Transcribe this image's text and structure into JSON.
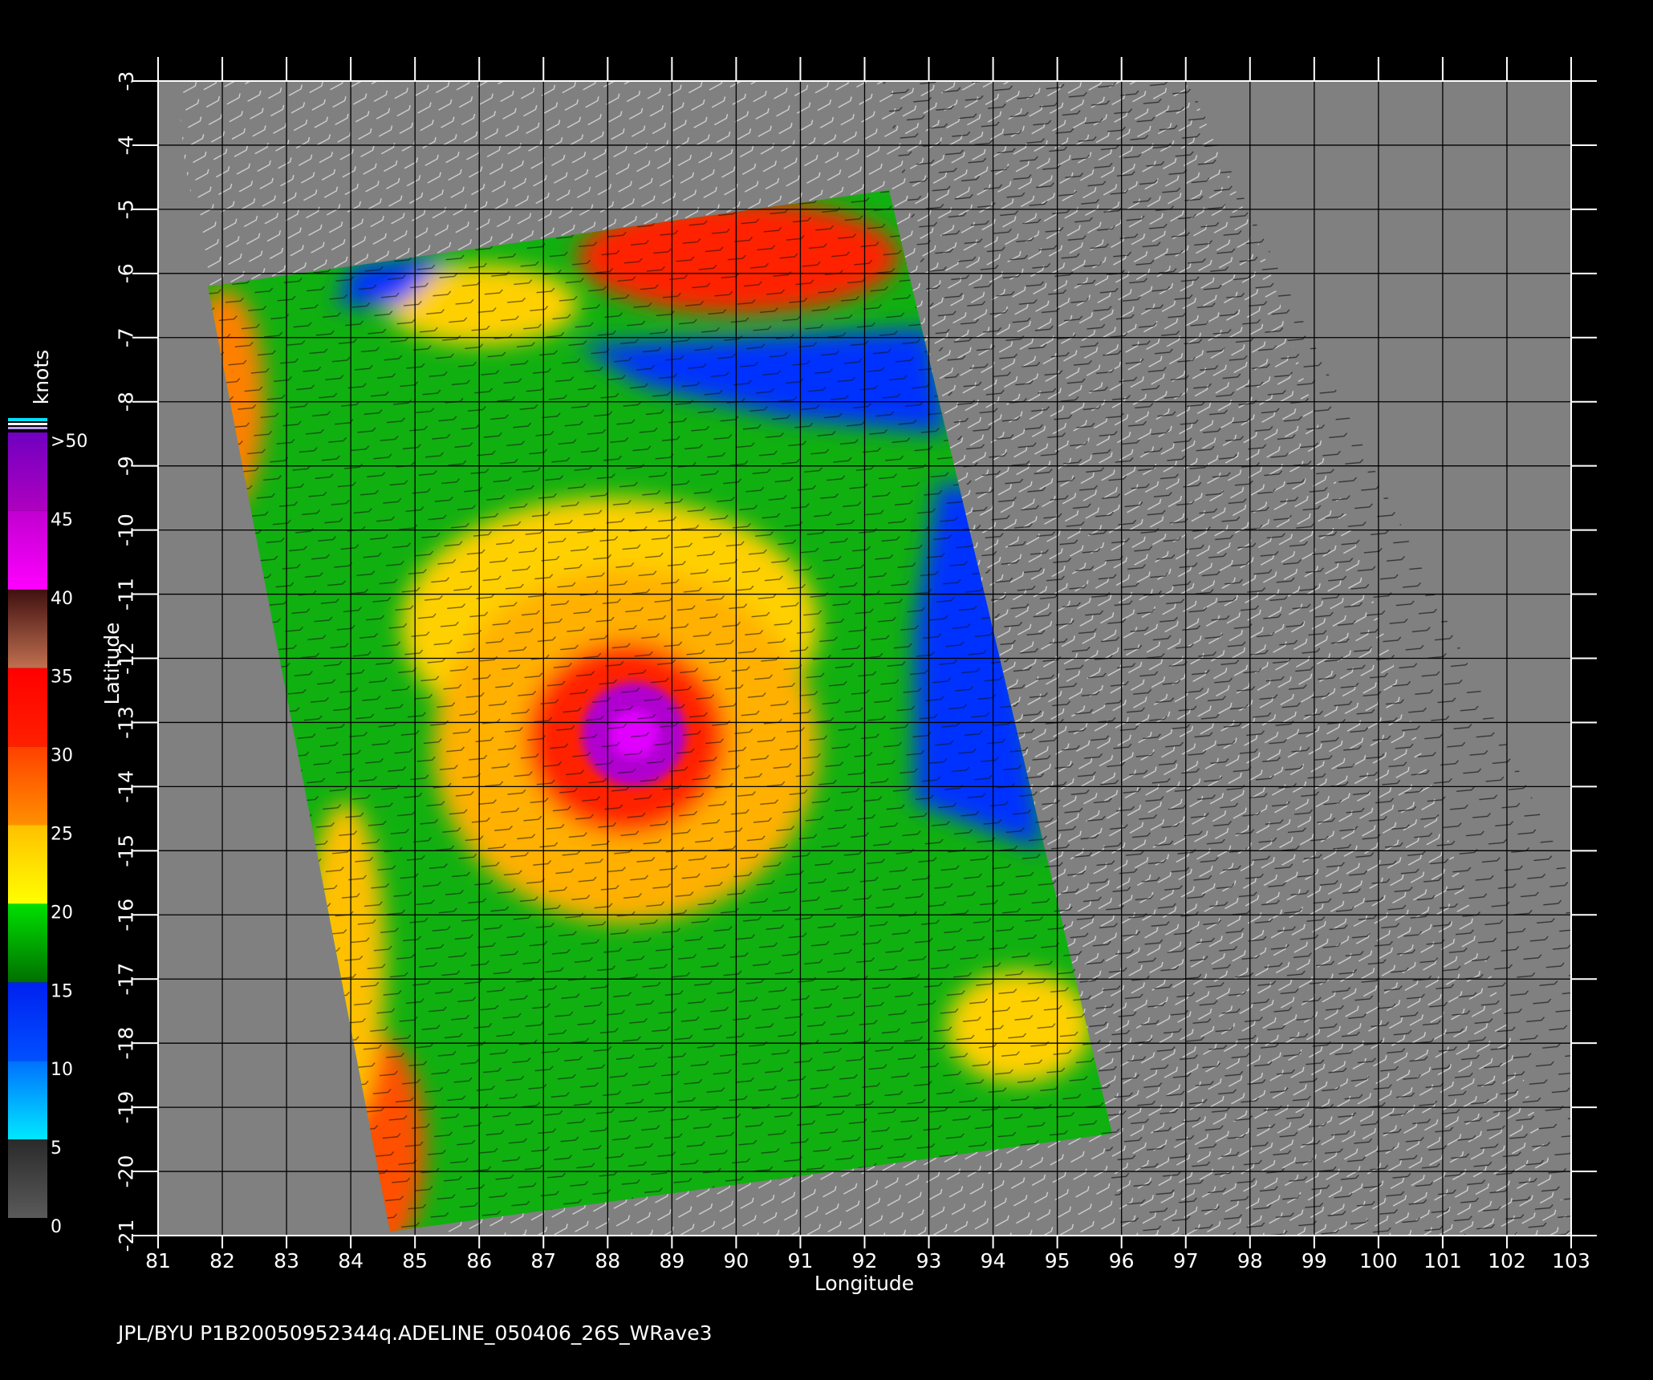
{
  "map": {
    "xlabel": "Longitude",
    "ylabel": "Latitude",
    "xlim": [
      81,
      103
    ],
    "ylim": [
      -3,
      -21
    ],
    "xticks": [
      81,
      82,
      83,
      84,
      85,
      86,
      87,
      88,
      89,
      90,
      91,
      92,
      93,
      94,
      95,
      96,
      97,
      98,
      99,
      100,
      101,
      102,
      103
    ],
    "yticks": [
      -3,
      -4,
      -5,
      -6,
      -7,
      -8,
      -9,
      -10,
      -11,
      -12,
      -13,
      -14,
      -15,
      -16,
      -17,
      -18,
      -19,
      -20,
      -21
    ],
    "grid": true
  },
  "colorbar": {
    "title": "knots",
    "lim": [
      0,
      50
    ],
    "ticks": [
      0,
      5,
      10,
      15,
      20,
      25,
      30,
      35,
      40,
      45,
      {
        "value": 50,
        "label": ">50"
      }
    ],
    "colors": [
      [
        "#5a5a5a",
        "#2a2a2a"
      ],
      [
        "#00e8ff",
        "#0070ff"
      ],
      [
        "#0050ff",
        "#0020f0"
      ],
      [
        "#007000",
        "#00e000"
      ],
      [
        "#ffff00",
        "#ffc000"
      ],
      [
        "#ff9000",
        "#ff4000"
      ],
      [
        "#ff2000",
        "#ff0000"
      ],
      [
        "#c07050",
        "#401010"
      ],
      [
        "#ff00ff",
        "#c000d0"
      ],
      [
        "#b000c0",
        "#7000c0"
      ]
    ]
  },
  "footer": "JPL/BYU  P1B20050952344q.ADELINE_050406_26S_WRave3"
}
